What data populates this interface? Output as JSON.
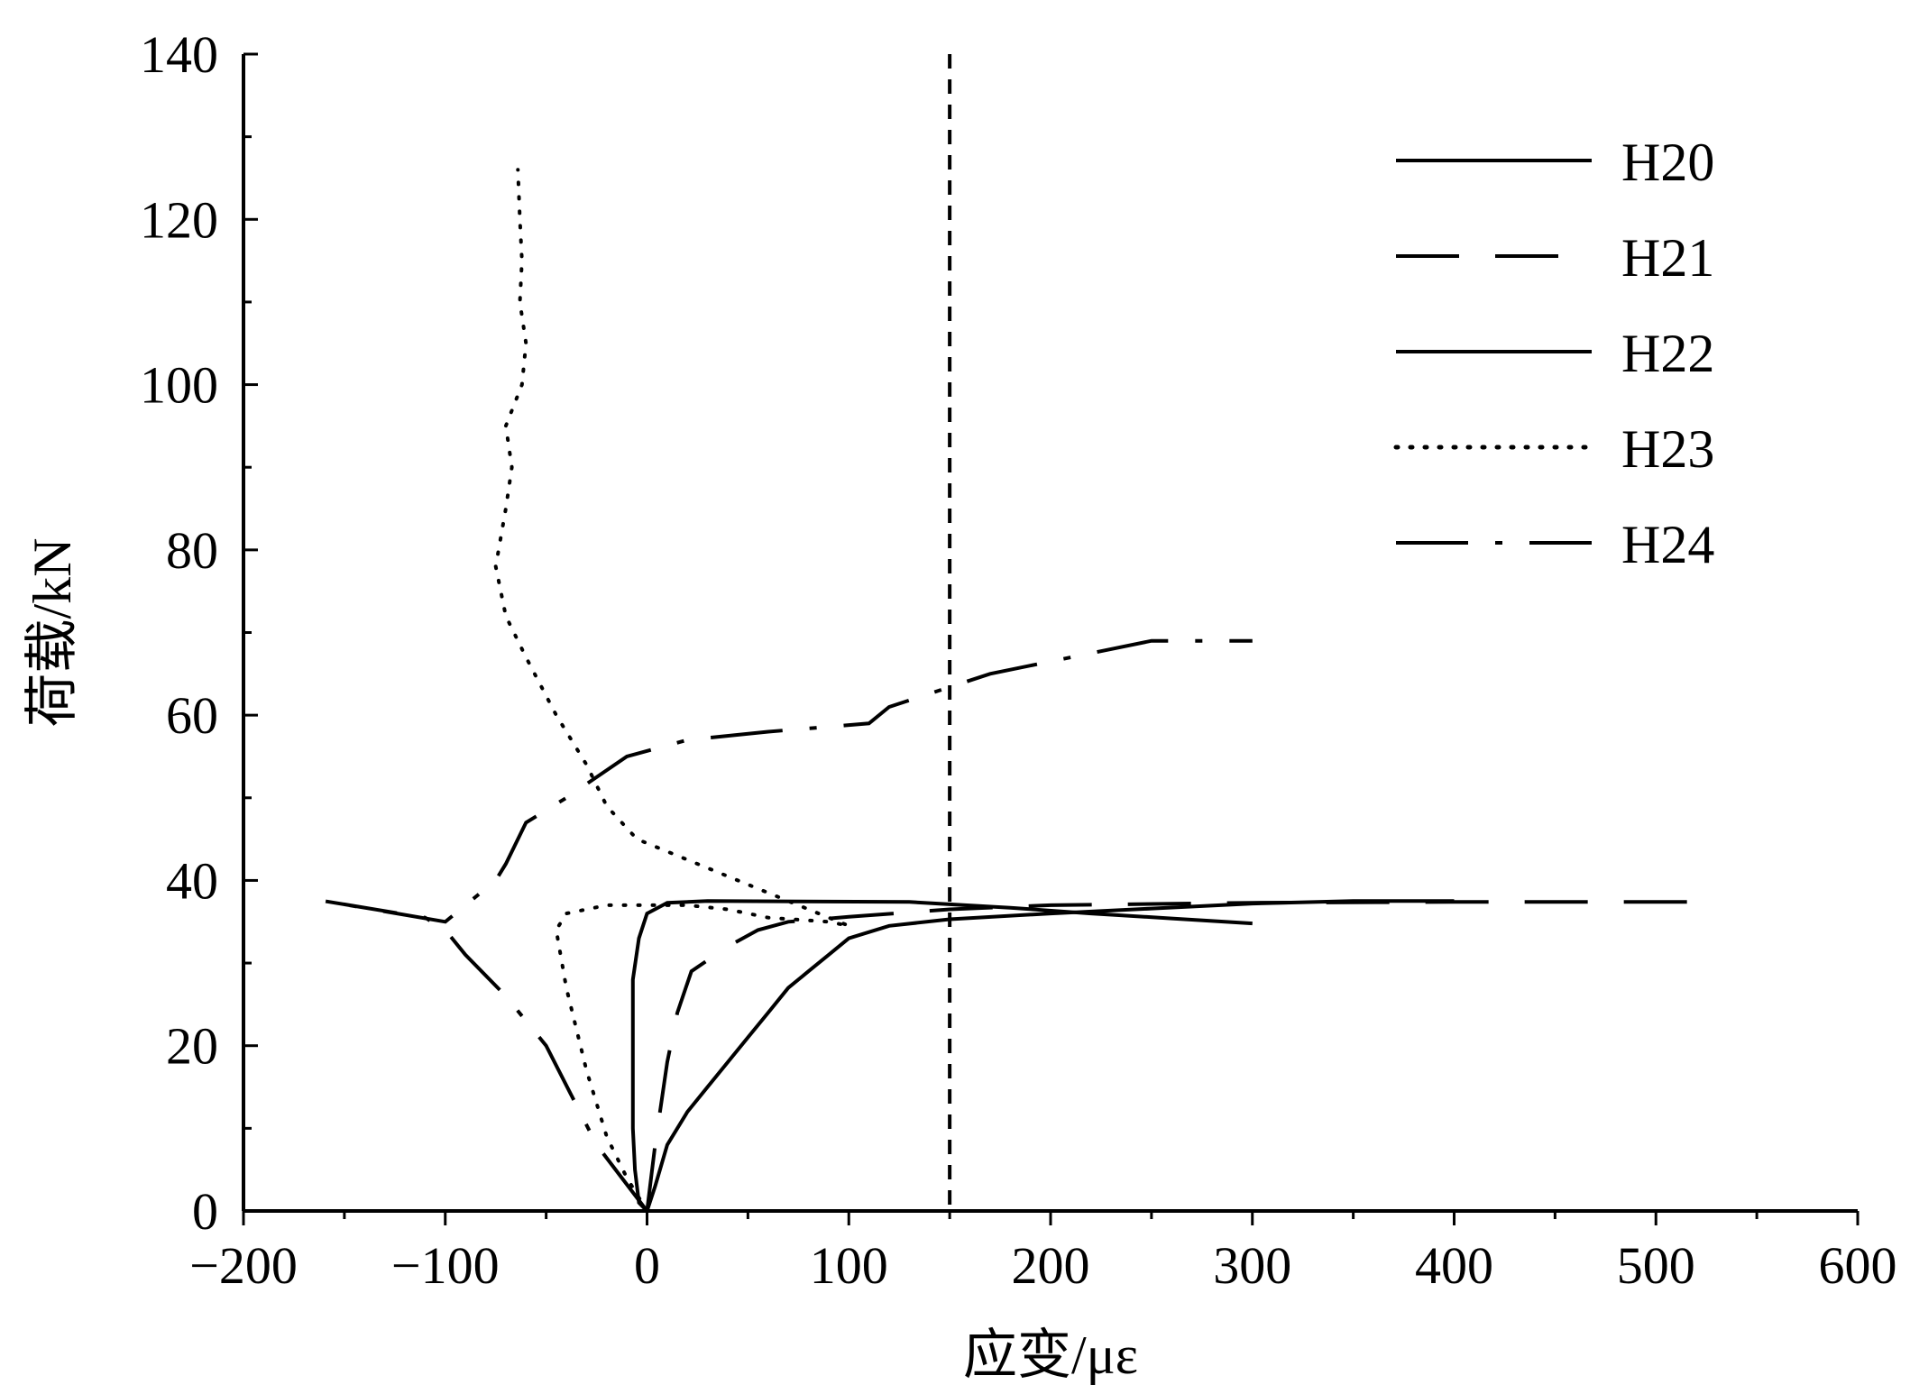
{
  "chart_data": {
    "type": "line",
    "xlabel": "应变/με",
    "ylabel": "荷载/kN",
    "xlim": [
      -200,
      600
    ],
    "ylim": [
      0,
      140
    ],
    "x_ticks": [
      -200,
      -100,
      0,
      100,
      200,
      300,
      400,
      500,
      600
    ],
    "x_tick_labels": [
      "−200",
      "−100",
      "0",
      "100",
      "200",
      "300",
      "400",
      "500",
      "600"
    ],
    "y_ticks": [
      0,
      20,
      40,
      60,
      80,
      100,
      120,
      140
    ],
    "y_tick_labels": [
      "0",
      "20",
      "40",
      "60",
      "80",
      "100",
      "120",
      "140"
    ],
    "grid": false,
    "legend_position": "top-right",
    "reference_line": {
      "x": 150,
      "style": "dashed"
    },
    "series": [
      {
        "name": "H20",
        "style": "solid",
        "points": [
          [
            0,
            0
          ],
          [
            4,
            3
          ],
          [
            10,
            8
          ],
          [
            20,
            12
          ],
          [
            30,
            15
          ],
          [
            40,
            18
          ],
          [
            50,
            21
          ],
          [
            60,
            24
          ],
          [
            70,
            27
          ],
          [
            80,
            29
          ],
          [
            90,
            31
          ],
          [
            100,
            33
          ],
          [
            120,
            34.5
          ],
          [
            150,
            35.3
          ],
          [
            200,
            36
          ],
          [
            250,
            36.6
          ],
          [
            300,
            37.2
          ],
          [
            350,
            37.5
          ],
          [
            400,
            37.5
          ]
        ]
      },
      {
        "name": "H21",
        "style": "long-dash",
        "points": [
          [
            0,
            0
          ],
          [
            2,
            4
          ],
          [
            4,
            8
          ],
          [
            7,
            13
          ],
          [
            10,
            18
          ],
          [
            15,
            24
          ],
          [
            22,
            29
          ],
          [
            40,
            32
          ],
          [
            55,
            34
          ],
          [
            70,
            35
          ],
          [
            100,
            35.6
          ],
          [
            150,
            36.5
          ],
          [
            200,
            37
          ],
          [
            300,
            37.3
          ],
          [
            400,
            37.4
          ],
          [
            520,
            37.4
          ]
        ]
      },
      {
        "name": "H22",
        "style": "solid",
        "points": [
          [
            0,
            0
          ],
          [
            -4,
            1
          ],
          [
            -6,
            5
          ],
          [
            -7,
            10
          ],
          [
            -7,
            20
          ],
          [
            -7,
            28
          ],
          [
            -4,
            33
          ],
          [
            0,
            36
          ],
          [
            10,
            37.3
          ],
          [
            30,
            37.5
          ],
          [
            130,
            37.4
          ],
          [
            180,
            36.7
          ],
          [
            220,
            36
          ],
          [
            260,
            35.4
          ],
          [
            300,
            34.8
          ]
        ]
      },
      {
        "name": "H23",
        "style": "dotted",
        "points": [
          [
            0,
            0
          ],
          [
            -10,
            4
          ],
          [
            -20,
            9
          ],
          [
            -30,
            17
          ],
          [
            -40,
            27
          ],
          [
            -45,
            34
          ],
          [
            -40,
            36
          ],
          [
            -20,
            37
          ],
          [
            0,
            37
          ],
          [
            20,
            37
          ],
          [
            40,
            36.5
          ],
          [
            60,
            35.5
          ],
          [
            90,
            35
          ],
          [
            100,
            34.5
          ],
          [
            -5,
            45
          ],
          [
            -20,
            49
          ],
          [
            -30,
            54
          ],
          [
            -45,
            60
          ],
          [
            -60,
            67
          ],
          [
            -70,
            72
          ],
          [
            -75,
            78
          ],
          [
            -70,
            85
          ],
          [
            -67,
            90
          ],
          [
            -70,
            95
          ],
          [
            -62,
            100
          ],
          [
            -60,
            105
          ],
          [
            -63,
            110
          ],
          [
            -62,
            115
          ],
          [
            -63,
            120
          ],
          [
            -64,
            126
          ]
        ]
      },
      {
        "name": "H24",
        "style": "dash-dot",
        "points": [
          [
            0,
            0
          ],
          [
            -25,
            8
          ],
          [
            -50,
            20
          ],
          [
            -70,
            26
          ],
          [
            -90,
            31
          ],
          [
            -100,
            34
          ],
          [
            -110,
            35.5
          ],
          [
            -160,
            37.5
          ],
          [
            -100,
            35
          ],
          [
            -75,
            40
          ],
          [
            -70,
            42
          ],
          [
            -60,
            47
          ],
          [
            -40,
            50
          ],
          [
            -10,
            55
          ],
          [
            20,
            57
          ],
          [
            60,
            58
          ],
          [
            110,
            59
          ],
          [
            120,
            61
          ],
          [
            170,
            65
          ],
          [
            210,
            67
          ],
          [
            250,
            69
          ],
          [
            300,
            69
          ]
        ]
      }
    ]
  }
}
